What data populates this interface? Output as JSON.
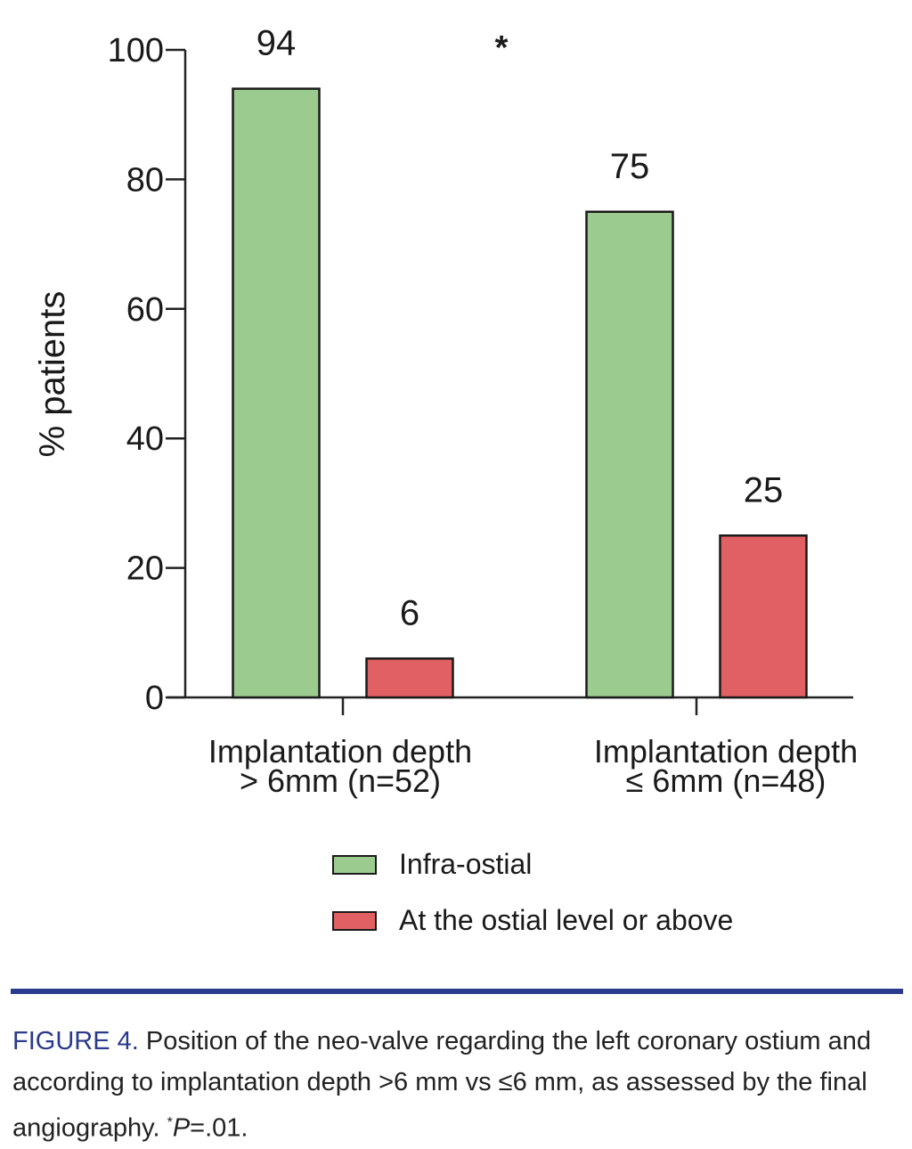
{
  "chart_data": {
    "type": "bar",
    "ylabel": "% patients",
    "ylim": [
      0,
      100
    ],
    "yticks": [
      "0",
      "20",
      "40",
      "60",
      "80",
      "100"
    ],
    "categories": [
      [
        "Implantation depth",
        "> 6mm (n=52)"
      ],
      [
        "Implantation depth",
        "≤ 6mm (n=48)"
      ]
    ],
    "series": [
      {
        "name": "Infra-ostial",
        "color": "#9ccb8f",
        "values": [
          94,
          75
        ],
        "labels": [
          "94",
          "75"
        ]
      },
      {
        "name": "At the ostial level or above",
        "color": "#e06063",
        "values": [
          6,
          25
        ],
        "labels": [
          "6",
          "25"
        ]
      }
    ],
    "annotation": "*",
    "legend_position": "bottom-center"
  },
  "caption": {
    "label": "FIGURE 4.",
    "text": " Position of the neo-valve regarding the left coronary ostium and according to implantation depth >6 mm vs ≤6 mm, as assessed by the final angiography. ",
    "footnote_mark": "*",
    "p_symbol": "P",
    "p_value": "=.01."
  }
}
